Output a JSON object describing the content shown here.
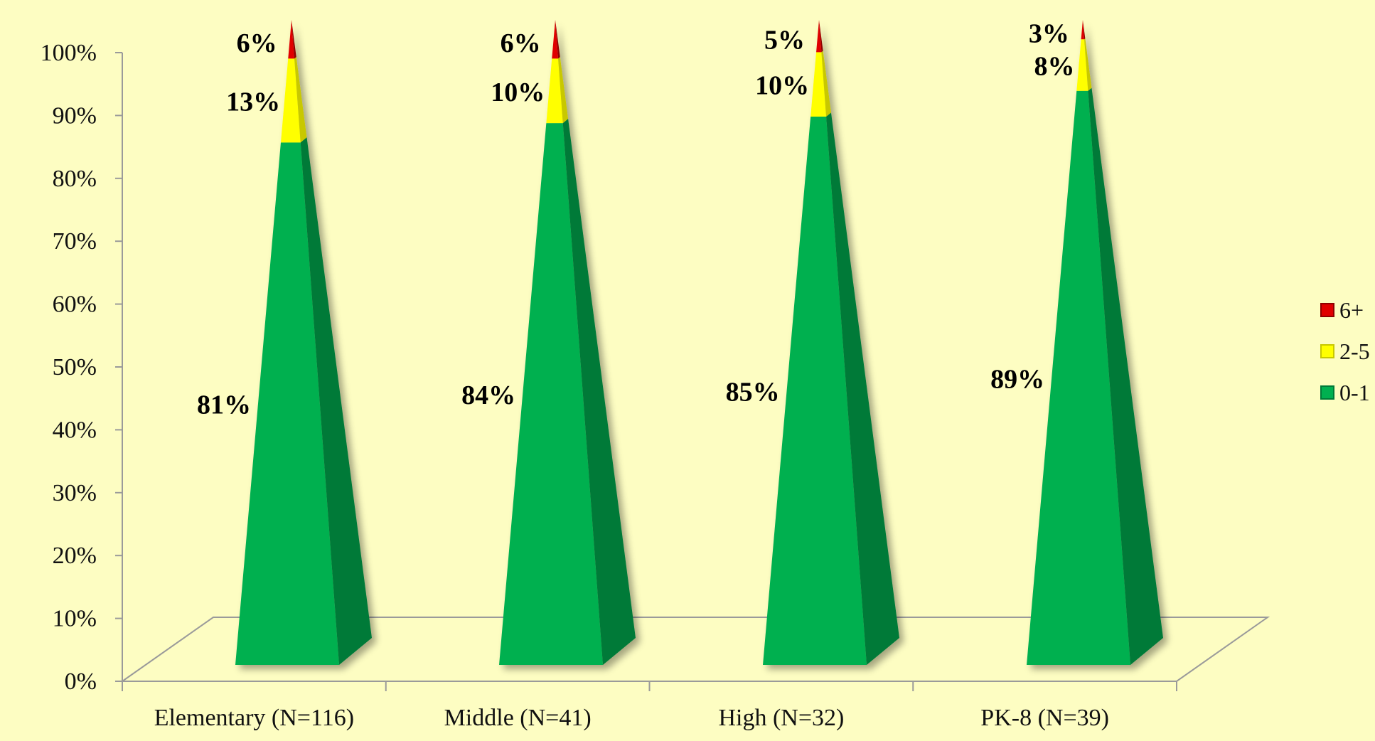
{
  "chart_data": {
    "type": "bar",
    "style": "3d-pyramid-stacked-percent",
    "categories": [
      "Elementary (N=116)",
      "Middle (N=41)",
      "High (N=32)",
      "PK-8 (N=39)"
    ],
    "series": [
      {
        "name": "0-1",
        "values": [
          81,
          84,
          85,
          89
        ],
        "labels": [
          "81%",
          "84%",
          "85%",
          "89%"
        ],
        "color": "#00b050",
        "side_color": "#007a38"
      },
      {
        "name": "2-5",
        "values": [
          13,
          10,
          10,
          8
        ],
        "labels": [
          "13%",
          "10%",
          "10%",
          "8%"
        ],
        "color": "#ffff00",
        "side_color": "#c8c800"
      },
      {
        "name": "6+",
        "values": [
          6,
          6,
          5,
          3
        ],
        "labels": [
          "6%",
          "6%",
          "5%",
          "3%"
        ],
        "color": "#e00000",
        "side_color": "#900000"
      }
    ],
    "legend_order": [
      "6+",
      "2-5",
      "0-1"
    ],
    "y_ticks": [
      "0%",
      "10%",
      "20%",
      "30%",
      "40%",
      "50%",
      "60%",
      "70%",
      "80%",
      "90%",
      "100%"
    ],
    "ylim": [
      0,
      100
    ],
    "legend_position": "right",
    "grid": false
  },
  "colors": {
    "background": "#fdfdc2",
    "axis": "#9a9a9a"
  }
}
